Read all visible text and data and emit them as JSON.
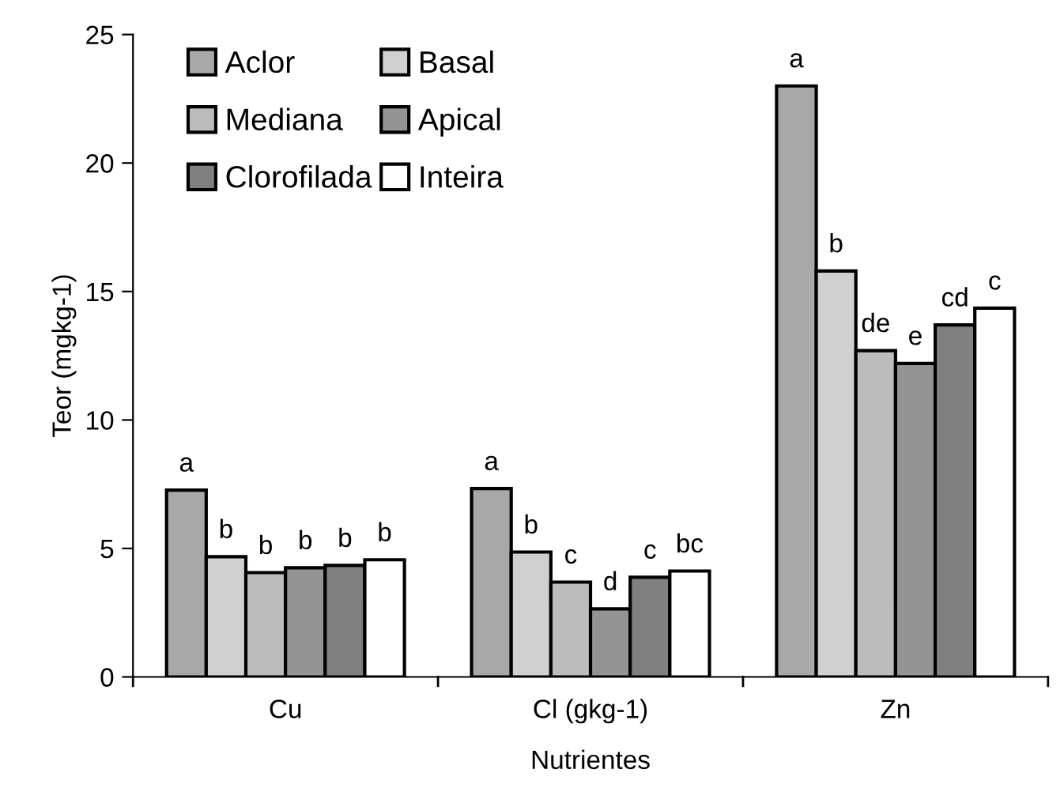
{
  "chart_data": {
    "type": "bar",
    "xlabel": "Nutrientes",
    "ylabel": "Teor (mgkg-1)",
    "categories": [
      "Cu",
      "Cl (gkg-1)",
      "Zn"
    ],
    "series": [
      {
        "name": "Aclor",
        "color": "#a8a8a8",
        "values": [
          7.27,
          7.33,
          23.0
        ],
        "value_labels": [
          "a",
          "a",
          "a"
        ]
      },
      {
        "name": "Basal",
        "color": "#d0d0d0",
        "values": [
          4.68,
          4.86,
          15.8
        ],
        "value_labels": [
          "b",
          "b",
          "b"
        ]
      },
      {
        "name": "Mediana",
        "color": "#bcbcbc",
        "values": [
          4.06,
          3.69,
          12.7
        ],
        "value_labels": [
          "b",
          "c",
          "de"
        ]
      },
      {
        "name": "Apical",
        "color": "#949494",
        "values": [
          4.25,
          2.65,
          12.2
        ],
        "value_labels": [
          "b",
          "d",
          "e"
        ]
      },
      {
        "name": "Clorofilada",
        "color": "#808080",
        "values": [
          4.34,
          3.88,
          13.7
        ],
        "value_labels": [
          "b",
          "c",
          "cd"
        ]
      },
      {
        "name": "Inteira",
        "color": "#ffffff",
        "values": [
          4.56,
          4.12,
          14.35
        ],
        "value_labels": [
          "b",
          "bc",
          "c"
        ]
      }
    ],
    "ylim": [
      0,
      25
    ],
    "yticks": [
      0,
      5,
      10,
      15,
      20,
      25
    ],
    "grid": false,
    "legend": "top left"
  }
}
